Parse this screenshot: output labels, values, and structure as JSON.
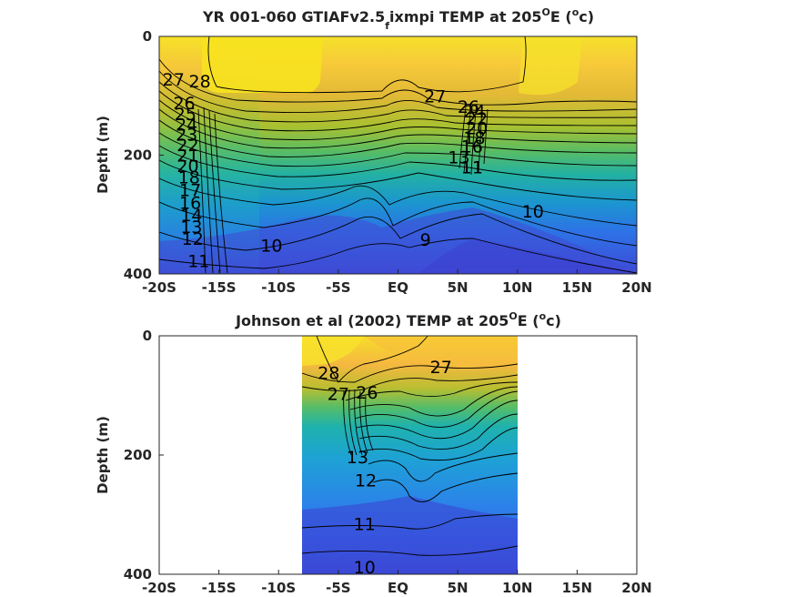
{
  "chart_data": [
    {
      "type": "heatmap",
      "title_main": "YR 001-060 GTIAFv2.5",
      "title_sub": "f",
      "title_rest": "ixmpi TEMP at 205",
      "title_deg": "O",
      "title_unit_pre": "E (",
      "title_unit_sup": "o",
      "title_unit_post": "c)",
      "ylabel": "Depth (m)",
      "xlim": [
        -20,
        20
      ],
      "ylim": [
        0,
        400
      ],
      "y_reversed": true,
      "x_ticks": [
        "-20S",
        "-15S",
        "-10S",
        "-5S",
        "EQ",
        "5N",
        "10N",
        "15N",
        "20N"
      ],
      "y_ticks": [
        "0",
        "200",
        "400"
      ],
      "data_extent_lat": [
        -20,
        20
      ],
      "contour_labels": [
        {
          "text": "28",
          "lat": -16.6,
          "depth": 75
        },
        {
          "text": "27",
          "lat": -18.8,
          "depth": 72
        },
        {
          "text": "26",
          "lat": -17.9,
          "depth": 112
        },
        {
          "text": "25",
          "lat": -17.8,
          "depth": 130
        },
        {
          "text": "24",
          "lat": -17.7,
          "depth": 148
        },
        {
          "text": "23",
          "lat": -17.7,
          "depth": 165
        },
        {
          "text": "22",
          "lat": -17.6,
          "depth": 182
        },
        {
          "text": "21",
          "lat": -17.6,
          "depth": 200
        },
        {
          "text": "20",
          "lat": -17.6,
          "depth": 218
        },
        {
          "text": "18",
          "lat": -17.5,
          "depth": 237
        },
        {
          "text": "17",
          "lat": -17.4,
          "depth": 258
        },
        {
          "text": "16",
          "lat": -17.4,
          "depth": 280
        },
        {
          "text": "14",
          "lat": -17.3,
          "depth": 300
        },
        {
          "text": "13",
          "lat": -17.3,
          "depth": 320
        },
        {
          "text": "12",
          "lat": -17.2,
          "depth": 340
        },
        {
          "text": "11",
          "lat": -16.7,
          "depth": 378
        },
        {
          "text": "10",
          "lat": -10.6,
          "depth": 352
        },
        {
          "text": "9",
          "lat": 2.3,
          "depth": 342
        },
        {
          "text": "10",
          "lat": 11.3,
          "depth": 294
        },
        {
          "text": "27",
          "lat": 3.1,
          "depth": 100
        },
        {
          "text": "26",
          "lat": 5.9,
          "depth": 118
        },
        {
          "text": "11",
          "lat": 6.2,
          "depth": 220
        },
        {
          "text": "13",
          "lat": 5.1,
          "depth": 203
        },
        {
          "text": "16",
          "lat": 6.2,
          "depth": 185
        },
        {
          "text": "18",
          "lat": 6.4,
          "depth": 170
        },
        {
          "text": "20",
          "lat": 6.6,
          "depth": 154
        },
        {
          "text": "22",
          "lat": 6.6,
          "depth": 138
        },
        {
          "text": "24",
          "lat": 6.4,
          "depth": 126
        }
      ]
    },
    {
      "type": "heatmap",
      "title_main": "Johnson et al (2002) TEMP at 205",
      "title_deg": "O",
      "title_unit_pre": "E (",
      "title_unit_sup": "o",
      "title_unit_post": "c)",
      "ylabel": "Depth (m)",
      "xlim": [
        -20,
        20
      ],
      "ylim": [
        0,
        400
      ],
      "y_reversed": true,
      "x_ticks": [
        "-20S",
        "-15S",
        "-10S",
        "-5S",
        "EQ",
        "5N",
        "10N",
        "15N",
        "20N"
      ],
      "y_ticks": [
        "0",
        "200",
        "400"
      ],
      "data_extent_lat": [
        -8,
        10
      ],
      "contour_labels": [
        {
          "text": "28",
          "lat": -5.8,
          "depth": 62
        },
        {
          "text": "27",
          "lat": -5.0,
          "depth": 97
        },
        {
          "text": "26",
          "lat": -2.6,
          "depth": 95
        },
        {
          "text": "27",
          "lat": 3.6,
          "depth": 52
        },
        {
          "text": "13",
          "lat": -3.4,
          "depth": 203
        },
        {
          "text": "12",
          "lat": -2.7,
          "depth": 242
        },
        {
          "text": "11",
          "lat": -2.8,
          "depth": 315
        },
        {
          "text": "10",
          "lat": -2.8,
          "depth": 388
        }
      ]
    }
  ]
}
